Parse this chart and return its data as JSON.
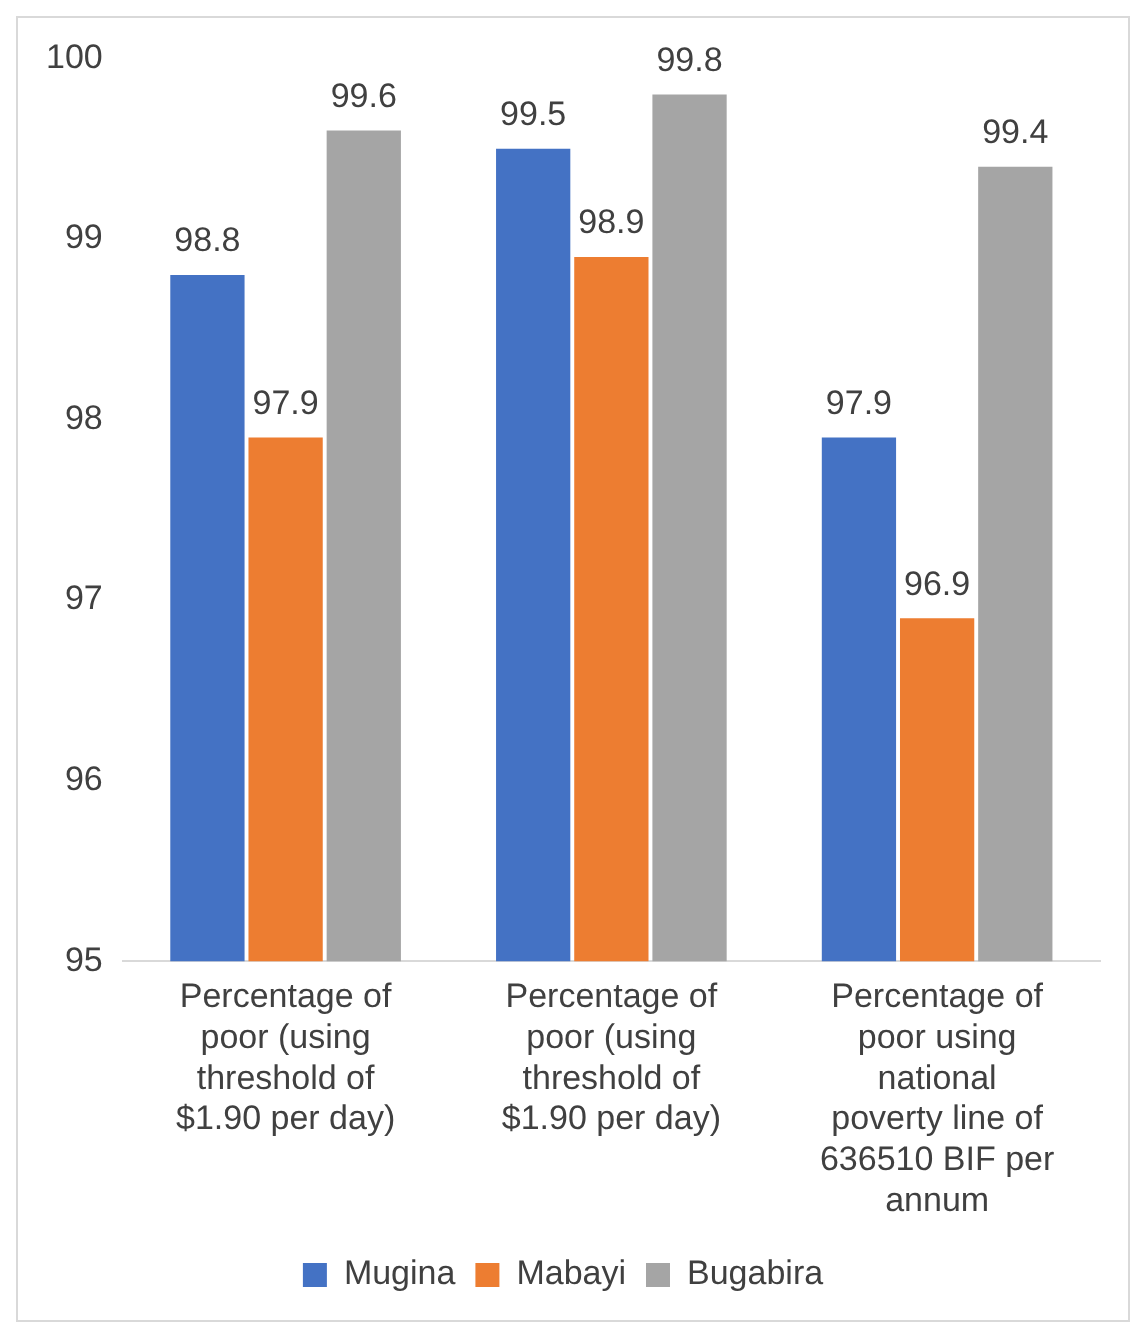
{
  "chart_data": {
    "type": "bar",
    "categories": [
      "Percentage of poor (using threshold of $1.90 per day)",
      "Percentage of poor (using threshold of $1.90 per day)",
      "Percentage of poor using national poverty line of 636510 BIF per annum"
    ],
    "series": [
      {
        "name": "Mugina",
        "color": "#4472c4",
        "values": [
          98.8,
          99.5,
          97.9
        ]
      },
      {
        "name": "Mabayi",
        "color": "#ed7d31",
        "values": [
          97.9,
          98.9,
          96.9
        ]
      },
      {
        "name": "Bugabira",
        "color": "#a5a5a5",
        "values": [
          99.6,
          99.8,
          99.4
        ]
      }
    ],
    "ylim": [
      95,
      100
    ],
    "yticks": [
      95,
      96,
      97,
      98,
      99,
      100
    ],
    "grid": false,
    "legend": "bottom",
    "data_labels": true
  }
}
